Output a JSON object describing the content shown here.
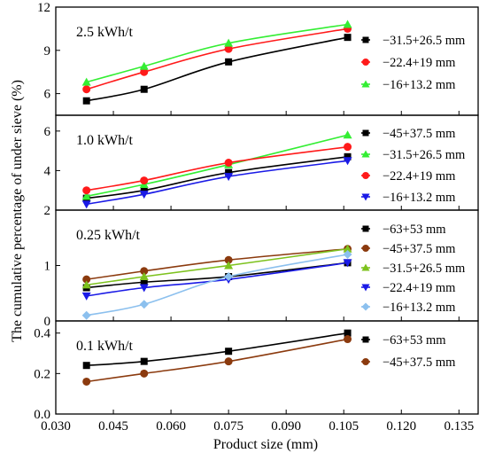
{
  "ylabel": "The cumulative percentage of under sieve (%)",
  "xlabel": "Product size (mm)",
  "x_ticks": [
    "0.030",
    "0.045",
    "0.060",
    "0.075",
    "0.090",
    "0.105",
    "0.120",
    "0.135"
  ],
  "colors": {
    "black": "#000000",
    "red": "#ff1a1a",
    "green": "#33ee33",
    "blue": "#1a1ae6",
    "brown": "#8b3a0e",
    "olive": "#7dc21e",
    "lightblue": "#8cc0ee"
  },
  "chart_data": [
    {
      "type": "line",
      "title": "2.5 kWh/t",
      "xlim": [
        0.03,
        0.14
      ],
      "ylim": [
        4.5,
        12
      ],
      "y_ticks": [
        "6",
        "9",
        "12"
      ],
      "x": [
        0.038,
        0.053,
        0.075,
        0.106
      ],
      "series": [
        {
          "name": "−31.5+26.5 mm",
          "values": [
            5.5,
            6.3,
            8.2,
            9.9
          ],
          "color": "black",
          "marker": "square"
        },
        {
          "name": "−22.4+19 mm",
          "values": [
            6.3,
            7.5,
            9.1,
            10.5
          ],
          "color": "red",
          "marker": "circle"
        },
        {
          "name": "−16+13.2 mm",
          "values": [
            6.8,
            7.9,
            9.5,
            10.8
          ],
          "color": "green",
          "marker": "triangle-up"
        }
      ]
    },
    {
      "type": "line",
      "title": "1.0 kWh/t",
      "xlim": [
        0.03,
        0.14
      ],
      "ylim": [
        2,
        6.8
      ],
      "y_ticks": [
        "2",
        "4",
        "6"
      ],
      "x": [
        0.038,
        0.053,
        0.075,
        0.106
      ],
      "series": [
        {
          "name": "−45+37.5 mm",
          "values": [
            2.6,
            3.0,
            3.9,
            4.7
          ],
          "color": "black",
          "marker": "square"
        },
        {
          "name": "−31.5+26.5 mm",
          "values": [
            2.7,
            3.3,
            4.3,
            5.8
          ],
          "color": "green",
          "marker": "triangle-up"
        },
        {
          "name": "−22.4+19 mm",
          "values": [
            3.0,
            3.5,
            4.4,
            5.2
          ],
          "color": "red",
          "marker": "circle"
        },
        {
          "name": "−16+13.2 mm",
          "values": [
            2.3,
            2.8,
            3.7,
            4.5
          ],
          "color": "blue",
          "marker": "triangle-down"
        }
      ]
    },
    {
      "type": "line",
      "title": "0.25 kWh/t",
      "xlim": [
        0.03,
        0.14
      ],
      "ylim": [
        0,
        2
      ],
      "y_ticks": [
        "0",
        "1"
      ],
      "x": [
        0.038,
        0.053,
        0.075,
        0.106
      ],
      "series": [
        {
          "name": "−63+53 mm",
          "values": [
            0.6,
            0.7,
            0.8,
            1.05
          ],
          "color": "black",
          "marker": "square"
        },
        {
          "name": "−45+37.5 mm",
          "values": [
            0.75,
            0.9,
            1.1,
            1.3
          ],
          "color": "brown",
          "marker": "circle"
        },
        {
          "name": "−31.5+26.5 mm",
          "values": [
            0.65,
            0.8,
            1.0,
            1.3
          ],
          "color": "olive",
          "marker": "triangle-up"
        },
        {
          "name": "−22.4+19 mm",
          "values": [
            0.45,
            0.6,
            0.75,
            1.05
          ],
          "color": "blue",
          "marker": "triangle-down"
        },
        {
          "name": "−16+13.2 mm",
          "values": [
            0.1,
            0.3,
            0.8,
            1.2
          ],
          "color": "lightblue",
          "marker": "diamond"
        }
      ]
    },
    {
      "type": "line",
      "title": "0.1 kWh/t",
      "xlim": [
        0.03,
        0.14
      ],
      "ylim": [
        0,
        0.46
      ],
      "y_ticks": [
        "0.0",
        "0.2",
        "0.4"
      ],
      "x": [
        0.038,
        0.053,
        0.075,
        0.106
      ],
      "series": [
        {
          "name": "−63+53 mm",
          "values": [
            0.24,
            0.26,
            0.31,
            0.4
          ],
          "color": "black",
          "marker": "square"
        },
        {
          "name": "−45+37.5 mm",
          "values": [
            0.16,
            0.2,
            0.26,
            0.37
          ],
          "color": "brown",
          "marker": "circle"
        }
      ]
    }
  ]
}
